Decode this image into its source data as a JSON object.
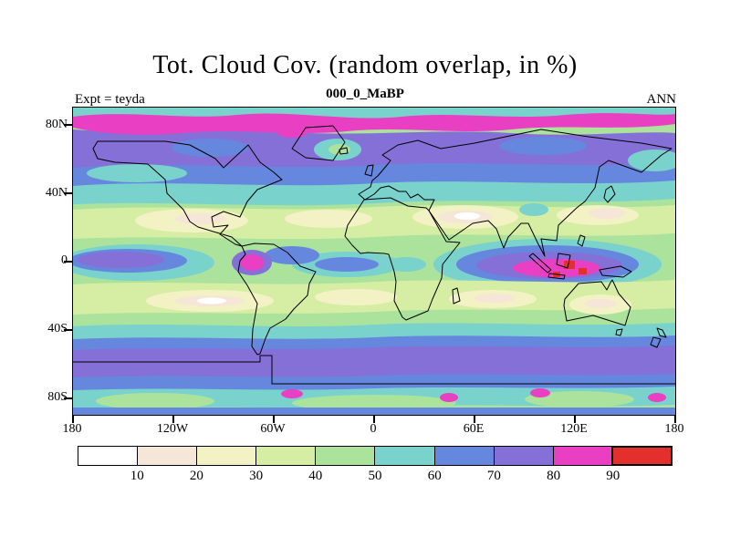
{
  "title": "Tot. Cloud Cov. (random overlap, in %)",
  "subtitle": "000_0_MaBP",
  "experiment_label": "Expt = teyda",
  "season_label": "ANN",
  "axes": {
    "lat_ticks": [
      "80N",
      "40N",
      "0",
      "40S",
      "80S"
    ],
    "lon_ticks": [
      "180",
      "120W",
      "60W",
      "0",
      "60E",
      "120E",
      "180"
    ]
  },
  "colorbar": {
    "labels": [
      "10",
      "20",
      "30",
      "40",
      "50",
      "60",
      "70",
      "80",
      "90"
    ],
    "colors": [
      "#ffffff",
      "#f5e6d8",
      "#f2f2c4",
      "#d6eda4",
      "#abe29c",
      "#7ad2cc",
      "#6687de",
      "#8570d8",
      "#e83fc3",
      "#e4302d"
    ]
  },
  "chart_data": {
    "type": "heatmap",
    "title": "Tot. Cloud Cov. (random overlap, in %)",
    "subtitle": "000_0_MaBP",
    "experiment": "Expt = teyda",
    "season": "ANN",
    "variable": "Total cloud cover (random overlap)",
    "units": "%",
    "projection": "global latitude-longitude map with model coastlines",
    "lat_range": [
      "90S",
      "90N"
    ],
    "lon_range": [
      "180W",
      "180E"
    ],
    "lat_ticks": [
      "80N",
      "40N",
      "0",
      "40S",
      "80S"
    ],
    "lon_ticks": [
      "180",
      "120W",
      "60W",
      "0",
      "60E",
      "120E",
      "180"
    ],
    "contour_levels": [
      0,
      10,
      20,
      30,
      40,
      50,
      60,
      70,
      80,
      90,
      100
    ],
    "palette": [
      "#ffffff",
      "#f5e6d8",
      "#f2f2c4",
      "#d6eda4",
      "#abe29c",
      "#7ad2cc",
      "#6687de",
      "#8570d8",
      "#e83fc3",
      "#e4302d"
    ],
    "approx_zonal_values": [
      {
        "lat_band": "80N-90N",
        "cloud_pct": "60-90, magenta band 80-90 near 85N"
      },
      {
        "lat_band": "60N-80N",
        "cloud_pct": "70-80 (purple) with 50-60 patches"
      },
      {
        "lat_band": "45N-60N",
        "cloud_pct": "50-70"
      },
      {
        "lat_band": "25N-45N",
        "cloud_pct": "10-40 subtropical minimum, <10 over Sahara"
      },
      {
        "lat_band": "5N-25N",
        "cloud_pct": "30-50"
      },
      {
        "lat_band": "10S-5N",
        "cloud_pct": "50-90, >90 spots over equatorial Indian Ocean / warm pool"
      },
      {
        "lat_band": "15S-35S",
        "cloud_pct": "10-40 minimum, <10 over SE Pacific and central Australia"
      },
      {
        "lat_band": "40S-65S",
        "cloud_pct": "70-80 continuous Southern Ocean band"
      },
      {
        "lat_band": "65S-90S",
        "cloud_pct": "40-70 with isolated 80-90 spots"
      }
    ],
    "notable_features": [
      "Red maxima (>90%) embedded in magenta region over equatorial Indian Ocean / Maritime Continent near 90E-120E",
      "Magenta maximum (80-90%) near northwest South America around 80W on the equator",
      "Wavy magenta band (80-90%) across the Arctic near 85N",
      "Continuous purple band (70-80%) across the Southern Ocean near 50S-60S",
      "Cream/white minima (<20%) over Sahara-Arabia, subtropical oceans and central Australia"
    ],
    "legend_position": "horizontal colorbar at bottom",
    "grid": false
  }
}
